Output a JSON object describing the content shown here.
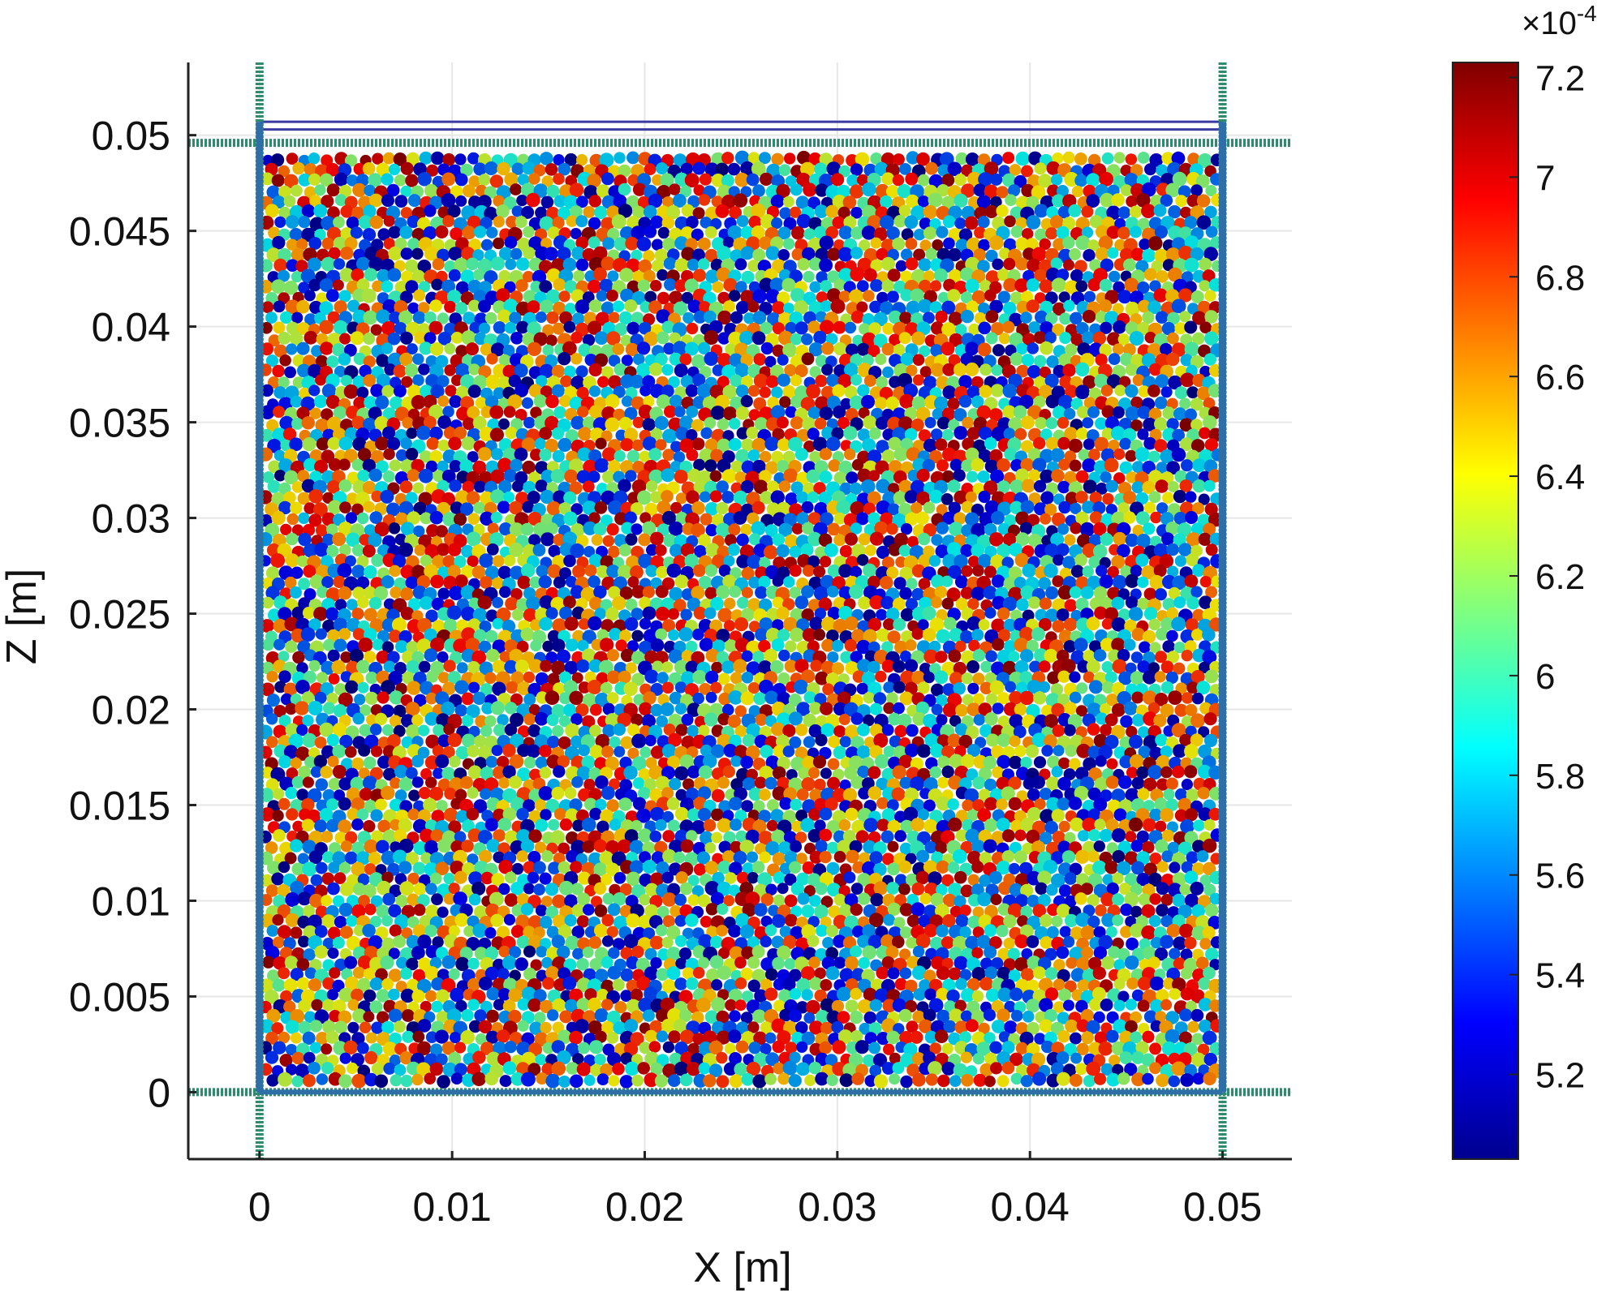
{
  "chart_data": {
    "type": "scatter",
    "title": "",
    "xlabel": "X [m]",
    "ylabel": "Z [m]",
    "xlim": [
      -0.0037,
      0.0536
    ],
    "ylim": [
      -0.0035,
      0.0538
    ],
    "xticks": [
      "0",
      "0.01",
      "0.02",
      "0.03",
      "0.04",
      "0.05"
    ],
    "xtick_values": [
      0,
      0.01,
      0.02,
      0.03,
      0.04,
      0.05
    ],
    "yticks": [
      "0",
      "0.005",
      "0.01",
      "0.015",
      "0.02",
      "0.025",
      "0.03",
      "0.035",
      "0.04",
      "0.045",
      "0.05"
    ],
    "ytick_values": [
      0,
      0.005,
      0.01,
      0.015,
      0.02,
      0.025,
      0.03,
      0.035,
      0.04,
      0.045,
      0.05
    ],
    "grid": true,
    "particle_region": {
      "x": [
        0,
        0.05
      ],
      "z": [
        0,
        0.049
      ]
    },
    "walls": {
      "top_plate_z": [
        0.0503,
        0.0507
      ],
      "top_plate_color": "#3a3aa0",
      "side_wall_color": "#2e6fa8",
      "boundary_color": "#2e8b6e",
      "top_boundary_z": 0.0496,
      "bottom_boundary_z": 0
    },
    "colorbar": {
      "colormap": "jet",
      "range": [
        5.03,
        7.23
      ],
      "ticks": [
        "5.2",
        "5.4",
        "5.6",
        "5.8",
        "6",
        "6.2",
        "6.4",
        "6.6",
        "6.8",
        "7",
        "7.2"
      ],
      "tick_values": [
        5.2,
        5.4,
        5.6,
        5.8,
        6.0,
        6.2,
        6.4,
        6.6,
        6.8,
        7.0,
        7.2
      ],
      "multiplier": "×10",
      "exponent": "-4"
    }
  }
}
